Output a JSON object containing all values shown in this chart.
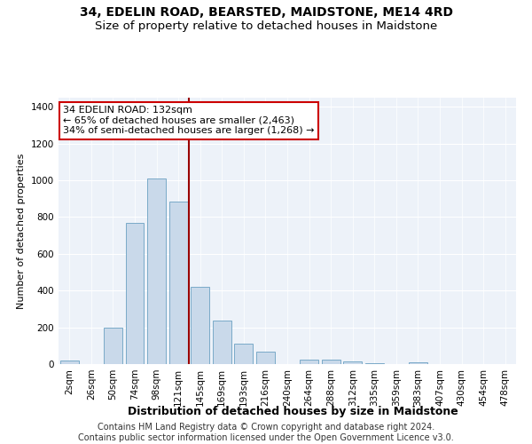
{
  "title": "34, EDELIN ROAD, BEARSTED, MAIDSTONE, ME14 4RD",
  "subtitle": "Size of property relative to detached houses in Maidstone",
  "xlabel": "Distribution of detached houses by size in Maidstone",
  "ylabel": "Number of detached properties",
  "categories": [
    "2sqm",
    "26sqm",
    "50sqm",
    "74sqm",
    "98sqm",
    "121sqm",
    "145sqm",
    "169sqm",
    "193sqm",
    "216sqm",
    "240sqm",
    "264sqm",
    "288sqm",
    "312sqm",
    "335sqm",
    "359sqm",
    "383sqm",
    "407sqm",
    "430sqm",
    "454sqm",
    "478sqm"
  ],
  "values": [
    20,
    0,
    200,
    770,
    1010,
    885,
    420,
    235,
    110,
    70,
    0,
    25,
    25,
    15,
    5,
    0,
    10,
    0,
    0,
    0,
    0
  ],
  "bar_color": "#c9d9ea",
  "bar_edge_color": "#7aaac8",
  "vline_x": 5.5,
  "vline_color": "#990000",
  "annotation_line1": "34 EDELIN ROAD: 132sqm",
  "annotation_line2": "← 65% of detached houses are smaller (2,463)",
  "annotation_line3": "34% of semi-detached houses are larger (1,268) →",
  "annotation_box_color": "#ffffff",
  "annotation_box_edge_color": "#cc0000",
  "ylim": [
    0,
    1450
  ],
  "yticks": [
    0,
    200,
    400,
    600,
    800,
    1000,
    1200,
    1400
  ],
  "bg_color": "#e8eef8",
  "plot_bg_color": "#edf2f9",
  "footer_line1": "Contains HM Land Registry data © Crown copyright and database right 2024.",
  "footer_line2": "Contains public sector information licensed under the Open Government Licence v3.0.",
  "title_fontsize": 10,
  "subtitle_fontsize": 9.5,
  "xlabel_fontsize": 9,
  "ylabel_fontsize": 8,
  "tick_fontsize": 7.5,
  "annotation_fontsize": 8,
  "footer_fontsize": 7
}
